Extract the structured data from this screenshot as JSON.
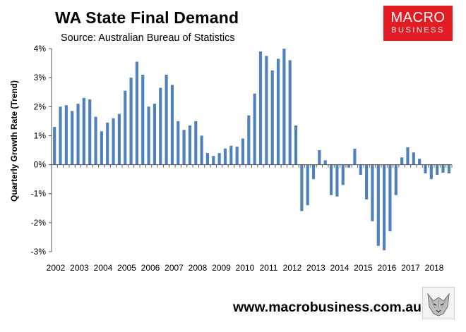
{
  "header": {
    "title": "WA State Final Demand",
    "subtitle": "Source: Australian Bureau of Statistics"
  },
  "logo": {
    "line1": "MACRO",
    "line2": "BUSINESS",
    "color": "#e31b23"
  },
  "footer": {
    "website": "www.macrobusiness.com.au"
  },
  "chart_data": {
    "type": "bar",
    "title": "WA State Final Demand",
    "subtitle": "Source: Australian Bureau of Statistics",
    "ylabel": "Quarterly Growth Rate (Trend)",
    "xlabel": "",
    "ylim": [
      -3,
      4
    ],
    "yticks": [
      "-3%",
      "-2%",
      "-1%",
      "0%",
      "1%",
      "2%",
      "3%",
      "4%"
    ],
    "x_tick_labels": [
      "2002",
      "2003",
      "2004",
      "2005",
      "2006",
      "2007",
      "2008",
      "2009",
      "2010",
      "2011",
      "2012",
      "2013",
      "2014",
      "2015",
      "2016",
      "2017",
      "2018"
    ],
    "bar_color": "#4f81bd",
    "grid": false,
    "series": [
      {
        "values": [
          1.3,
          2.0,
          2.05,
          1.85,
          2.1,
          2.3,
          2.25,
          1.65,
          1.15,
          1.45,
          1.6,
          1.75,
          2.55,
          3.0,
          3.55,
          3.1,
          2.0,
          2.1,
          2.65,
          3.1,
          2.75,
          1.5,
          1.2,
          1.35,
          1.5,
          1.0,
          0.4,
          0.3,
          0.4,
          0.55,
          0.65,
          0.62,
          0.9,
          1.7,
          2.45,
          3.9,
          3.75,
          3.25,
          3.65,
          4.0,
          3.6,
          1.35,
          -1.6,
          -1.4,
          -0.5,
          0.5,
          0.15,
          -1.05,
          -1.1,
          -0.7,
          -0.1,
          0.55,
          -0.35,
          -1.2,
          -1.95,
          -2.8,
          -2.95,
          -2.3,
          -1.05,
          0.25,
          0.6,
          0.42,
          0.2,
          -0.3,
          -0.5,
          -0.35,
          -0.28,
          -0.3
        ]
      }
    ]
  }
}
